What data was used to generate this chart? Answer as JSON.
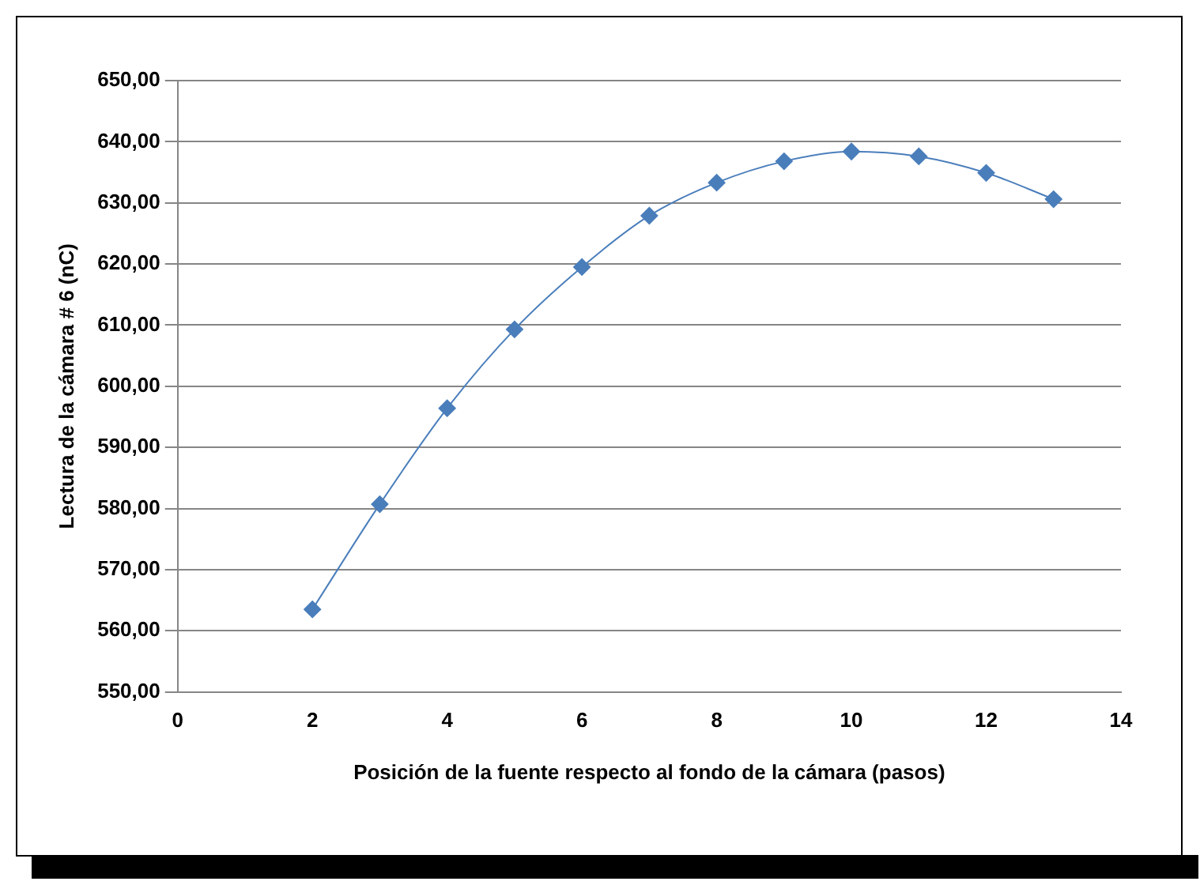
{
  "chart_data": {
    "type": "line",
    "xlabel": "Posición de la fuente respecto al fondo de la cámara (pasos)",
    "ylabel": "Lectura de la cámara # 6 (nC)",
    "x": [
      2,
      3,
      4,
      5,
      6,
      7,
      8,
      9,
      10,
      11,
      12,
      13
    ],
    "series": [
      {
        "color": "#4a7ebb",
        "values": [
          563.5,
          580.7,
          596.4,
          609.3,
          619.5,
          627.9,
          633.3,
          636.8,
          638.4,
          637.6,
          634.9,
          630.6
        ]
      }
    ],
    "marker": "diamond",
    "line_style": "solid",
    "xlim": [
      0,
      14
    ],
    "xticks": [
      0,
      2,
      4,
      6,
      8,
      10,
      12,
      14
    ],
    "ylim": [
      550,
      650
    ],
    "yticks": [
      {
        "value": 550,
        "label": "550,00"
      },
      {
        "value": 560,
        "label": "560,00"
      },
      {
        "value": 570,
        "label": "570,00"
      },
      {
        "value": 580,
        "label": "580,00"
      },
      {
        "value": 590,
        "label": "590,00"
      },
      {
        "value": 600,
        "label": "600,00"
      },
      {
        "value": 610,
        "label": "610,00"
      },
      {
        "value": 620,
        "label": "620,00"
      },
      {
        "value": 630,
        "label": "630,00"
      },
      {
        "value": 640,
        "label": "640,00"
      },
      {
        "value": 650,
        "label": "650,00"
      }
    ],
    "grid": "y"
  }
}
